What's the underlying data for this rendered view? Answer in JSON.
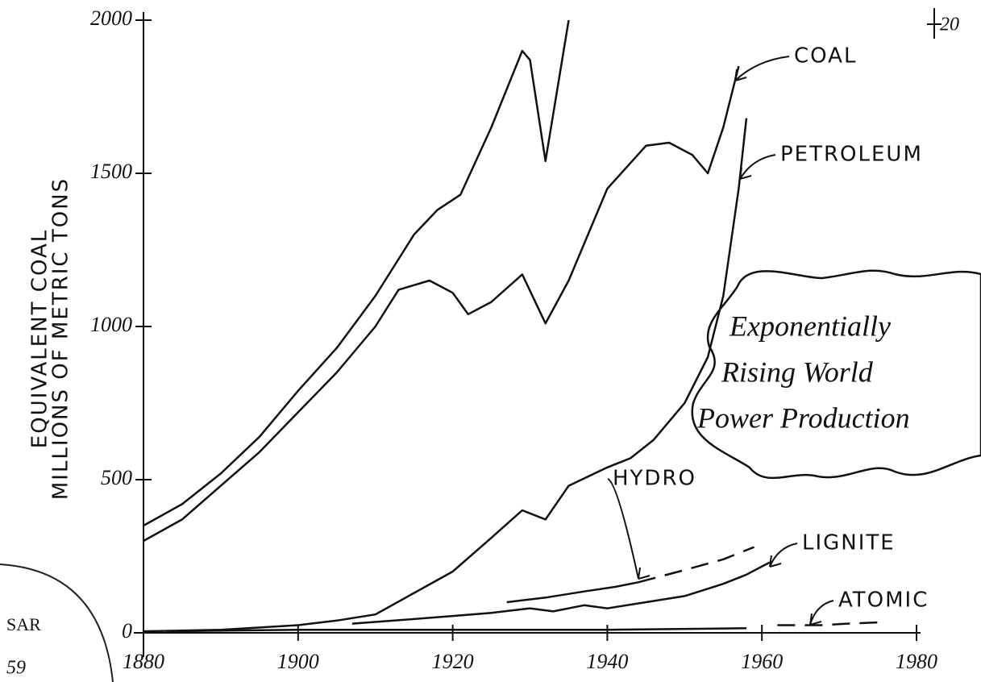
{
  "chart_data": {
    "type": "line",
    "y_label_lines": [
      "EQUIVALENT COAL",
      "MILLIONS OF METRIC TONS"
    ],
    "callout": [
      "Exponentially",
      "Rising World",
      "Power Production"
    ],
    "fragments": {
      "top_right": "20",
      "left_1": "SAR",
      "left_2": "59"
    },
    "xlim": [
      1880,
      1980
    ],
    "xticks": [
      1880,
      1900,
      1920,
      1940,
      1960,
      1980
    ],
    "ylim": [
      0,
      2000
    ],
    "yticks": [
      0,
      500,
      1000,
      1500,
      2000
    ],
    "color": "#111111",
    "series": [
      {
        "x": [
          1880,
          1885,
          1890,
          1895,
          1900,
          1905,
          1910,
          1915,
          1918,
          1921,
          1925,
          1929,
          1930,
          1932,
          1935
        ],
        "values": [
          350,
          420,
          520,
          640,
          790,
          930,
          1100,
          1300,
          1380,
          1430,
          1650,
          1900,
          1870,
          1540,
          2000
        ]
      },
      {
        "name": "COAL",
        "x": [
          1880,
          1885,
          1890,
          1895,
          1900,
          1905,
          1910,
          1913,
          1917,
          1920,
          1922,
          1925,
          1929,
          1932,
          1935,
          1940,
          1945,
          1948,
          1951,
          1953,
          1955,
          1957
        ],
        "values": [
          300,
          370,
          480,
          590,
          720,
          850,
          1000,
          1120,
          1150,
          1110,
          1040,
          1080,
          1170,
          1010,
          1150,
          1450,
          1590,
          1600,
          1560,
          1500,
          1650,
          1850
        ]
      },
      {
        "name": "PETROLEUM",
        "x": [
          1880,
          1890,
          1900,
          1905,
          1910,
          1915,
          1920,
          1925,
          1929,
          1930,
          1932,
          1935,
          1940,
          1943,
          1946,
          1950,
          1953,
          1955,
          1957,
          1958
        ],
        "values": [
          5,
          10,
          25,
          40,
          60,
          130,
          200,
          310,
          400,
          390,
          370,
          480,
          540,
          570,
          630,
          750,
          900,
          1100,
          1450,
          1680
        ]
      },
      {
        "name": "HYDRO",
        "x": [
          1927,
          1932,
          1937,
          1941,
          1944
        ],
        "values": [
          100,
          115,
          135,
          150,
          165
        ]
      },
      {
        "x": [
          1944,
          1950,
          1955,
          1959
        ],
        "values": [
          165,
          205,
          240,
          280
        ],
        "dashed": true
      },
      {
        "name": "LIGNITE",
        "x": [
          1907,
          1915,
          1920,
          1925,
          1930,
          1933,
          1937,
          1940,
          1945,
          1950,
          1955,
          1958,
          1961
        ],
        "values": [
          30,
          45,
          55,
          65,
          80,
          70,
          90,
          80,
          100,
          120,
          160,
          190,
          230
        ]
      },
      {
        "x": [
          1883,
          1900,
          1920,
          1940,
          1958
        ],
        "values": [
          5,
          10,
          10,
          10,
          15
        ]
      },
      {
        "name": "ATOMIC",
        "x": [
          1962,
          1968,
          1971,
          1976
        ],
        "values": [
          25,
          25,
          30,
          35
        ],
        "dashed": true
      }
    ]
  }
}
